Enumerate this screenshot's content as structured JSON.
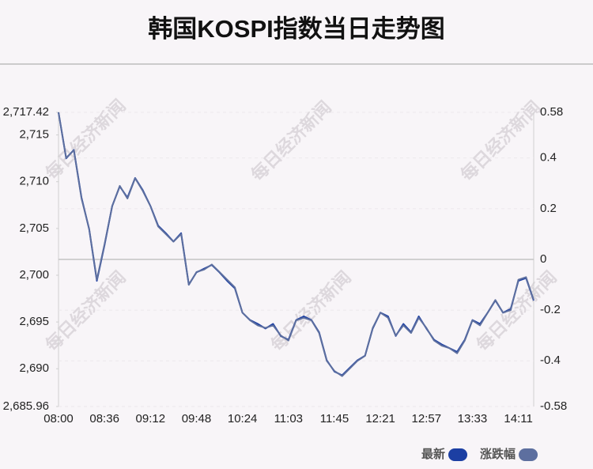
{
  "chart_data": {
    "type": "line",
    "title": "韩国KOSPI指数当日走势图",
    "watermark": "每日经济新闻",
    "categories": [
      "08:00",
      null,
      null,
      null,
      null,
      null,
      "08:36",
      null,
      null,
      null,
      null,
      null,
      "09:12",
      null,
      null,
      null,
      null,
      null,
      "09:48",
      null,
      null,
      null,
      null,
      null,
      "10:24",
      null,
      null,
      null,
      null,
      null,
      "11:03",
      null,
      null,
      null,
      null,
      null,
      "11:45",
      null,
      null,
      null,
      null,
      null,
      "12:21",
      null,
      null,
      null,
      null,
      null,
      "12:57",
      null,
      null,
      null,
      null,
      null,
      "13:33",
      null,
      null,
      null,
      null,
      null,
      "14:11",
      null,
      null
    ],
    "series": [
      {
        "name": "最新",
        "color": "#1c3fa3",
        "axis": "y",
        "values": [
          2717.42,
          2712.5,
          2713.4,
          2708.3,
          2704.9,
          2699.4,
          2703.2,
          2707.4,
          2709.5,
          2708.3,
          2710.4,
          2709.1,
          2707.4,
          2705.3,
          2704.5,
          2703.6,
          2704.5,
          2699.0,
          2700.3,
          2700.7,
          2701.1,
          2700.3,
          2699.4,
          2698.6,
          2696.0,
          2695.2,
          2694.8,
          2694.3,
          2694.8,
          2693.5,
          2693.1,
          2695.2,
          2695.6,
          2695.2,
          2693.9,
          2690.9,
          2689.7,
          2689.3,
          2690.1,
          2690.9,
          2691.4,
          2694.3,
          2696.0,
          2695.6,
          2693.5,
          2694.8,
          2693.9,
          2695.6,
          2694.3,
          2693.1,
          2692.6,
          2692.2,
          2691.8,
          2693.1,
          2695.2,
          2694.8,
          2696.0,
          2697.3,
          2696.0,
          2696.4,
          2699.4,
          2699.7,
          2697.3
        ]
      },
      {
        "name": "涨跌幅",
        "color": "#5d6f9f",
        "axis": "y2",
        "values": [
          0.58,
          0.4,
          0.43,
          0.24,
          0.12,
          -0.08,
          0.06,
          0.21,
          0.29,
          0.24,
          0.32,
          0.27,
          0.21,
          0.13,
          0.1,
          0.07,
          0.1,
          -0.1,
          -0.05,
          -0.04,
          -0.02,
          -0.05,
          -0.08,
          -0.11,
          -0.21,
          -0.24,
          -0.26,
          -0.27,
          -0.26,
          -0.3,
          -0.32,
          -0.24,
          -0.23,
          -0.24,
          -0.29,
          -0.4,
          -0.44,
          -0.46,
          -0.43,
          -0.4,
          -0.38,
          -0.27,
          -0.21,
          -0.23,
          -0.3,
          -0.26,
          -0.29,
          -0.23,
          -0.27,
          -0.32,
          -0.34,
          -0.35,
          -0.37,
          -0.32,
          -0.24,
          -0.26,
          -0.21,
          -0.16,
          -0.21,
          -0.2,
          -0.08,
          -0.07,
          -0.16
        ]
      }
    ],
    "ylim": [
      2685.96,
      2717.42
    ],
    "yticks": [
      {
        "value": 2717.42,
        "label": "2,717.42"
      },
      {
        "value": 2715,
        "label": "2,715"
      },
      {
        "value": 2710,
        "label": "2,710"
      },
      {
        "value": 2705,
        "label": "2,705"
      },
      {
        "value": 2700,
        "label": "2,700"
      },
      {
        "value": 2695,
        "label": "2,695"
      },
      {
        "value": 2690,
        "label": "2,690"
      },
      {
        "value": 2685.96,
        "label": "2,685.96"
      }
    ],
    "y2lim": [
      -0.58,
      0.58
    ],
    "y2ticks": [
      0.58,
      0.4,
      0.2,
      0,
      -0.2,
      -0.4,
      -0.58
    ],
    "grid": true,
    "legend": "bottom-right"
  }
}
